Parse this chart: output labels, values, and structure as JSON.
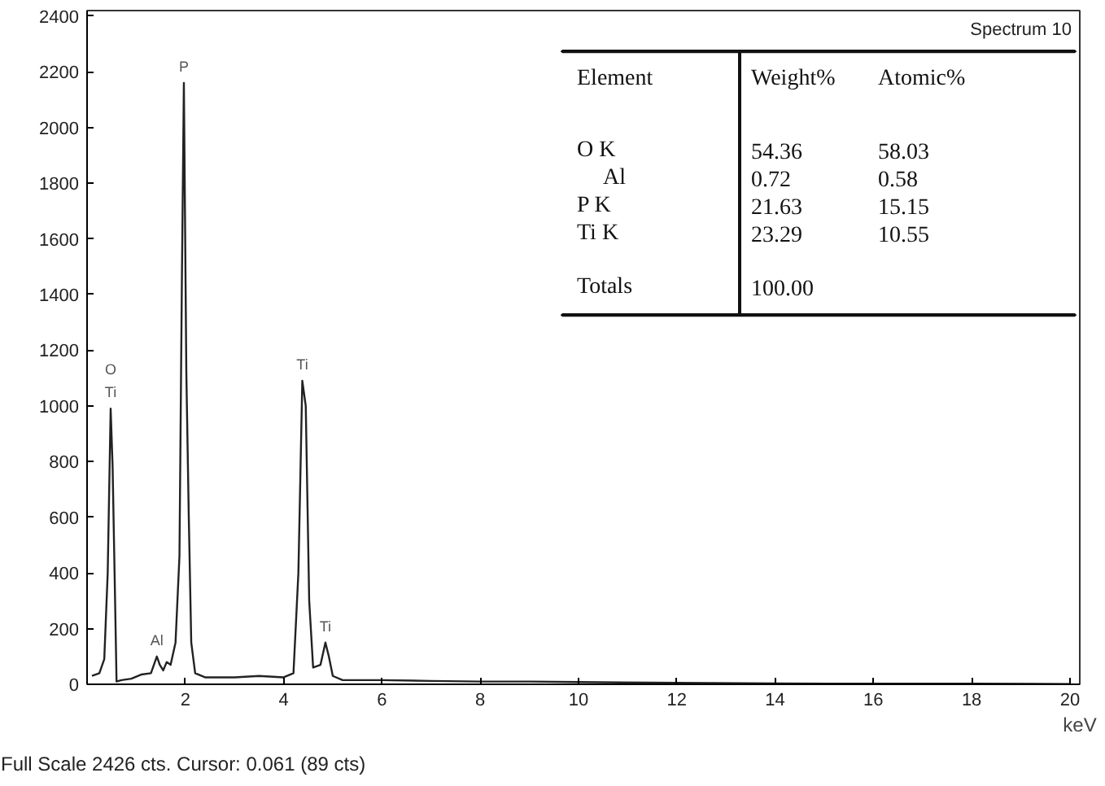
{
  "chart_data": {
    "type": "line",
    "xlabel": "keV",
    "x": [
      0.1,
      0.25,
      0.35,
      0.42,
      0.48,
      0.52,
      0.56,
      0.6,
      0.7,
      0.9,
      1.1,
      1.3,
      1.38,
      1.42,
      1.48,
      1.55,
      1.62,
      1.7,
      1.8,
      1.88,
      1.93,
      1.97,
      2.02,
      2.07,
      2.12,
      2.2,
      2.4,
      3.0,
      3.5,
      4.0,
      4.2,
      4.3,
      4.38,
      4.45,
      4.52,
      4.6,
      4.75,
      4.85,
      4.92,
      5.0,
      5.2,
      6,
      7,
      8,
      9,
      10,
      12,
      14,
      16,
      18,
      20
    ],
    "series": [
      {
        "color": "#222222",
        "values": [
          30,
          40,
          90,
          400,
          990,
          780,
          400,
          10,
          15,
          20,
          35,
          40,
          80,
          100,
          70,
          50,
          80,
          70,
          150,
          460,
          1460,
          2160,
          1120,
          600,
          150,
          40,
          25,
          25,
          30,
          25,
          40,
          400,
          1090,
          1000,
          300,
          60,
          70,
          150,
          100,
          30,
          15,
          15,
          12,
          10,
          10,
          8,
          5,
          3,
          2,
          2,
          1
        ]
      }
    ],
    "xlim": [
      0,
      20.2
    ],
    "ylim": [
      0,
      2420
    ],
    "xticks": [
      2,
      4,
      6,
      8,
      10,
      12,
      14,
      16,
      18,
      20
    ],
    "yticks": [
      0,
      200,
      400,
      600,
      800,
      1000,
      1200,
      1400,
      1600,
      1800,
      2000,
      2200,
      2400
    ],
    "grid": false,
    "marker": "none",
    "line_style": "solid",
    "annotations": [
      "Spectrum 10",
      "Full Scale 2426 cts. Cursor: 0.061 (89 cts)",
      "Element",
      "Weight%",
      "Atomic%",
      "O K",
      "54.36",
      "58.03",
      "Al",
      "0.72",
      "0.58",
      "P K",
      "21.63",
      "15.15",
      "Ti K",
      "23.29",
      "10.55",
      "Totals",
      "100.00",
      {
        "text": "O",
        "x": 0.48,
        "y": 990
      },
      {
        "text": "Ti",
        "x": 0.48,
        "y": 990
      },
      {
        "text": "P",
        "x": 1.97,
        "y": 2160
      },
      {
        "text": "Al",
        "x": 1.42,
        "y": 100
      },
      {
        "text": "Ti",
        "x": 4.38,
        "y": 1090
      },
      {
        "text": "Ti",
        "x": 4.85,
        "y": 150
      }
    ]
  }
}
